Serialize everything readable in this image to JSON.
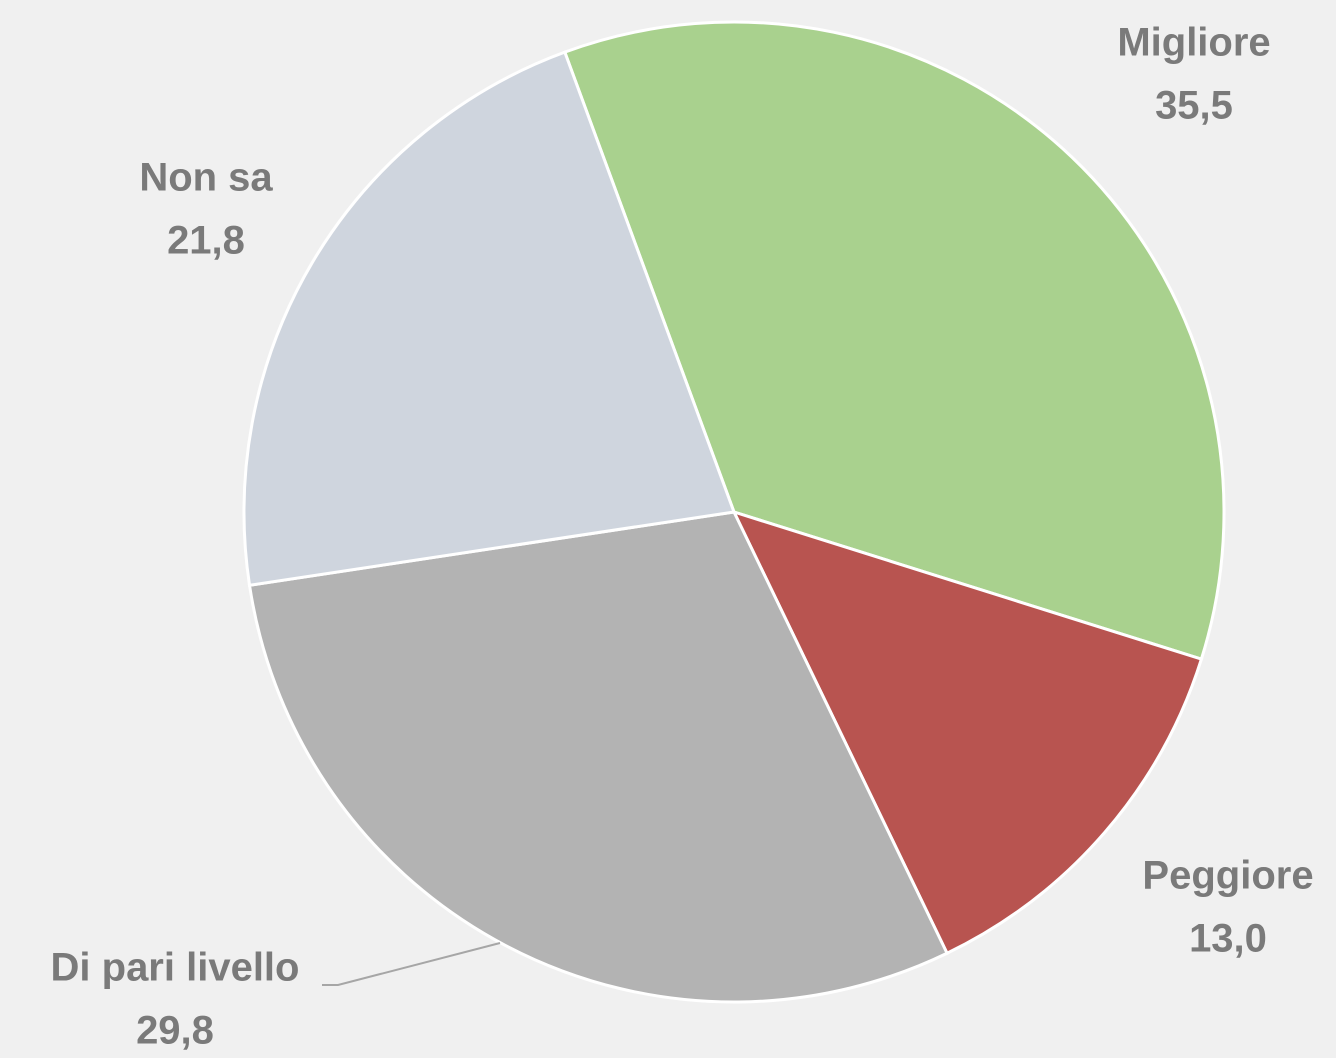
{
  "chart_data": {
    "type": "pie",
    "categories": [
      "Migliore",
      "Peggiore",
      "Di pari livello",
      "Non sa"
    ],
    "values": [
      35.5,
      13.0,
      29.8,
      21.8
    ],
    "value_labels": [
      "35,5",
      "13,0",
      "29,8",
      "21,8"
    ],
    "colors": [
      "#a9d18e",
      "#b85450",
      "#b3b3b3",
      "#cfd5de"
    ]
  }
}
